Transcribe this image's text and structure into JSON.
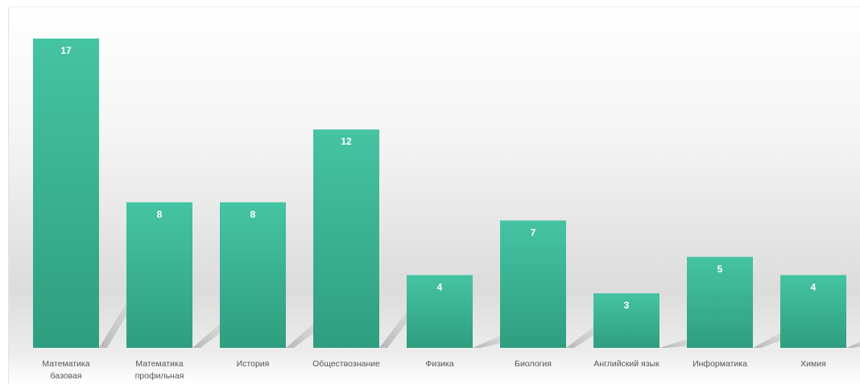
{
  "chart_data": {
    "type": "bar",
    "title": "",
    "xlabel": "",
    "ylabel": "",
    "categories": [
      [
        "Математика",
        "базовая"
      ],
      [
        "Математика",
        "профильная"
      ],
      [
        "История"
      ],
      [
        "Обществознание"
      ],
      [
        "Физика"
      ],
      [
        "Биология"
      ],
      [
        "Английский язык"
      ],
      [
        "Информатика"
      ],
      [
        "Химия"
      ]
    ],
    "values": [
      17,
      8,
      8,
      12,
      4,
      7,
      3,
      5,
      4
    ],
    "ylim": [
      0,
      18
    ],
    "data_labels": true,
    "grid": false,
    "legend": "none",
    "colors": {
      "bar_top": "#45c4a2",
      "bar_bottom": "#2f9e7f",
      "label": "#ffffff",
      "category_text": "#555555"
    }
  }
}
